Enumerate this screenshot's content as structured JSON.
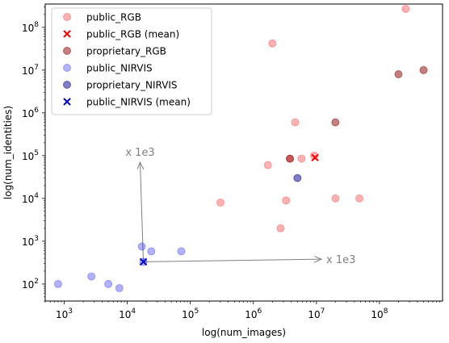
{
  "chart_data": {
    "type": "scatter",
    "xlabel": "log(num_images)",
    "ylabel": "log(num_identities)",
    "xscale": "log",
    "yscale": "log",
    "xlim": [
      500,
      1000000000
    ],
    "ylim": [
      40,
      350000000
    ],
    "x_ticks": [
      {
        "value": 1000,
        "base": "10",
        "exp": "3"
      },
      {
        "value": 10000,
        "base": "10",
        "exp": "4"
      },
      {
        "value": 100000,
        "base": "10",
        "exp": "5"
      },
      {
        "value": 1000000,
        "base": "10",
        "exp": "6"
      },
      {
        "value": 10000000,
        "base": "10",
        "exp": "7"
      },
      {
        "value": 100000000,
        "base": "10",
        "exp": "8"
      }
    ],
    "y_ticks": [
      {
        "value": 100,
        "base": "10",
        "exp": "2"
      },
      {
        "value": 1000,
        "base": "10",
        "exp": "3"
      },
      {
        "value": 10000,
        "base": "10",
        "exp": "4"
      },
      {
        "value": 100000,
        "base": "10",
        "exp": "5"
      },
      {
        "value": 1000000,
        "base": "10",
        "exp": "6"
      },
      {
        "value": 10000000,
        "base": "10",
        "exp": "7"
      },
      {
        "value": 100000000,
        "base": "10",
        "exp": "8"
      }
    ],
    "grid": false,
    "legend_position": "top-left",
    "series": [
      {
        "name": "public_RGB",
        "marker": "circle",
        "color": "#ff0000",
        "opacity": 0.3,
        "points": [
          [
            300000,
            8000
          ],
          [
            1700000,
            60000
          ],
          [
            2000000,
            42000000
          ],
          [
            2700000,
            2000
          ],
          [
            3300000,
            9000
          ],
          [
            3800000,
            85000
          ],
          [
            4600000,
            600000
          ],
          [
            5800000,
            85000
          ],
          [
            9200000,
            100000
          ],
          [
            20000000,
            10000
          ],
          [
            48000000,
            10000
          ],
          [
            260000000,
            270000000
          ]
        ]
      },
      {
        "name": "public_RGB (mean)",
        "marker": "x",
        "color": "#ff0000",
        "opacity": 1,
        "points": [
          [
            9500000,
            90000
          ]
        ]
      },
      {
        "name": "proprietary_RGB",
        "marker": "circle",
        "color": "#8b0000",
        "opacity": 0.5,
        "points": [
          [
            3800000,
            85000
          ],
          [
            20000000,
            600000
          ],
          [
            200000000,
            8000000
          ],
          [
            500000000,
            10000000
          ]
        ]
      },
      {
        "name": "public_NIRVIS",
        "marker": "circle",
        "color": "#0000ff",
        "opacity": 0.3,
        "points": [
          [
            800,
            100
          ],
          [
            2700,
            150
          ],
          [
            5000,
            100
          ],
          [
            7500,
            80
          ],
          [
            17000,
            750
          ],
          [
            24000,
            580
          ],
          [
            72000,
            580
          ],
          [
            18000,
            330
          ]
        ]
      },
      {
        "name": "proprietary_NIRVIS",
        "marker": "circle",
        "color": "#00008b",
        "opacity": 0.5,
        "points": [
          [
            5000000,
            30000
          ]
        ]
      },
      {
        "name": "public_NIRVIS (mean)",
        "marker": "x",
        "color": "#0000cc",
        "opacity": 1,
        "points": [
          [
            18000,
            330
          ]
        ]
      }
    ],
    "annotations": [
      {
        "text": "x 1e3",
        "from": [
          18000,
          330
        ],
        "to": [
          16000,
          70000
        ]
      },
      {
        "text": "x 1e3",
        "from": [
          18000,
          330
        ],
        "to": [
          12000000,
          380
        ]
      }
    ]
  }
}
